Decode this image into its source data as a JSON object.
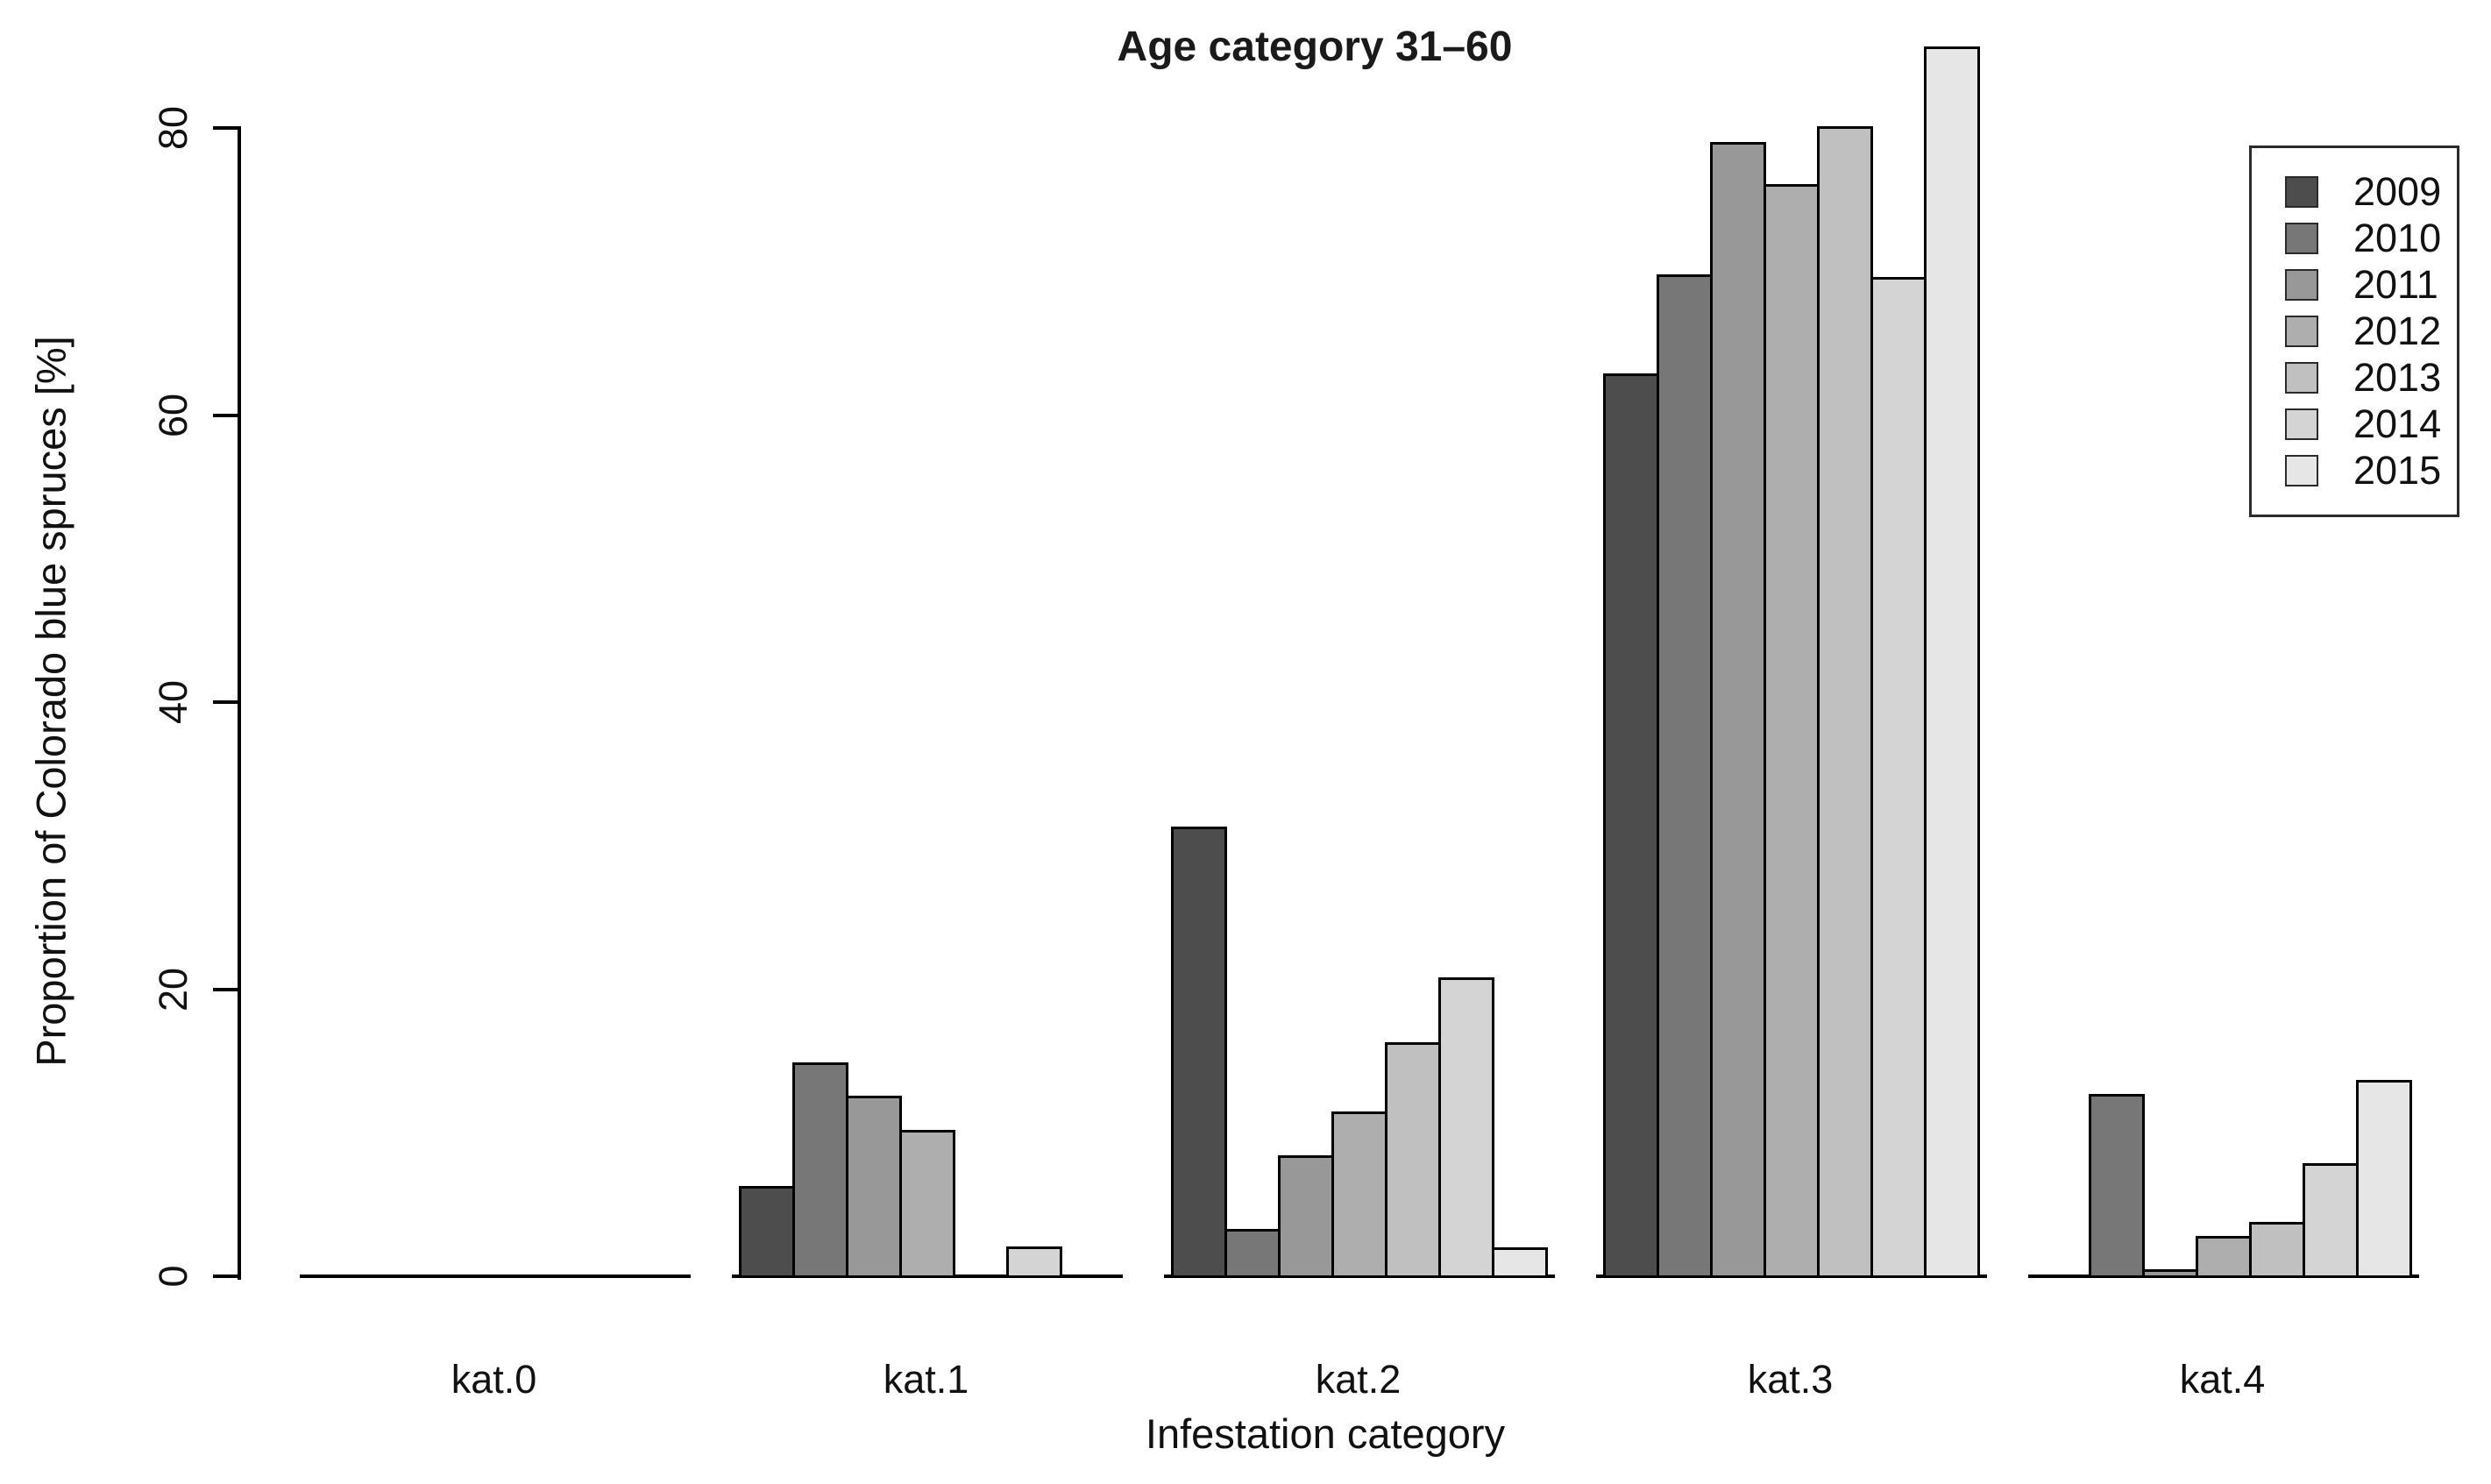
{
  "title": "Age category 31–60",
  "x_axis": {
    "label": "Infestation category",
    "categories": [
      "kat.0",
      "kat.1",
      "kat.2",
      "kat.3",
      "kat.4"
    ]
  },
  "y_axis": {
    "label": "Proportion of Colorado blue spruces [%]",
    "ticks": [
      0,
      20,
      40,
      60,
      80
    ]
  },
  "legend": {
    "position": "top-right",
    "entries": [
      "2009",
      "2010",
      "2011",
      "2012",
      "2013",
      "2014",
      "2015"
    ]
  },
  "chart_data": {
    "type": "bar",
    "title": "Age category 31–60",
    "xlabel": "Infestation category",
    "ylabel": "Proportion of Colorado blue spruces [%]",
    "categories": [
      "kat.0",
      "kat.1",
      "kat.2",
      "kat.3",
      "kat.4"
    ],
    "series": [
      {
        "name": "2009",
        "color": "#4D4D4D",
        "values": [
          0,
          6.3,
          31.3,
          62.9,
          0
        ]
      },
      {
        "name": "2010",
        "color": "#777777",
        "values": [
          0,
          14.9,
          3.3,
          69.8,
          12.7
        ]
      },
      {
        "name": "2011",
        "color": "#989898",
        "values": [
          0,
          12.6,
          8.4,
          79.0,
          0.5
        ]
      },
      {
        "name": "2012",
        "color": "#AEAEAE",
        "values": [
          0,
          10.2,
          11.5,
          76.1,
          2.8
        ]
      },
      {
        "name": "2013",
        "color": "#C0C0C0",
        "values": [
          0,
          0,
          16.3,
          80.1,
          3.8
        ]
      },
      {
        "name": "2014",
        "color": "#D4D4D4",
        "values": [
          0,
          2.1,
          20.8,
          69.6,
          7.9
        ]
      },
      {
        "name": "2015",
        "color": "#E6E6E6",
        "values": [
          0,
          0,
          2.0,
          85.7,
          13.7
        ]
      }
    ],
    "ylim": [
      0,
      80
    ],
    "grid": false,
    "bar_edge_color": "#000000",
    "legend_position": "top-right"
  }
}
